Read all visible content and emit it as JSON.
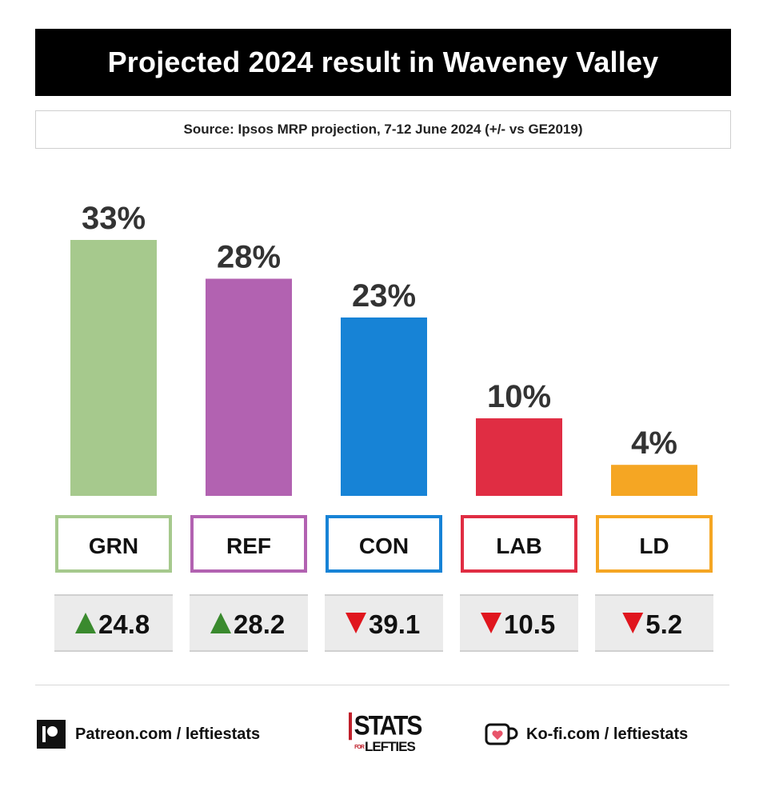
{
  "header": {
    "title": "Projected 2024 result in Waveney Valley",
    "source": "Source: Ipsos MRP projection, 7-12 June 2024 (+/- vs GE2019)"
  },
  "chart_data": {
    "type": "bar",
    "title": "Projected 2024 result in Waveney Valley",
    "categories": [
      "GRN",
      "REF",
      "CON",
      "LAB",
      "LD"
    ],
    "values": [
      33,
      28,
      23,
      10,
      4
    ],
    "value_labels": [
      "33%",
      "28%",
      "23%",
      "10%",
      "4%"
    ],
    "change_vs_ge2019": [
      24.8,
      28.2,
      -39.1,
      -10.5,
      -5.2
    ],
    "change_labels": [
      "24.8",
      "28.2",
      "39.1",
      "10.5",
      "5.2"
    ],
    "change_direction": [
      "up",
      "up",
      "down",
      "down",
      "down"
    ],
    "colors": [
      "#a6c98d",
      "#b262b1",
      "#1783d6",
      "#e02d43",
      "#f5a623"
    ],
    "ylim": [
      0,
      33
    ],
    "grid": false,
    "legend": "none"
  },
  "arrow_colors": {
    "up": "#3a8a2e",
    "down": "#e0161e"
  },
  "footer": {
    "patreon": "Patreon.com / leftiestats",
    "kofi": "Ko-fi.com / leftiestats",
    "patreon_icon": "patreon-icon",
    "kofi_icon": "kofi-cup-icon",
    "logo_line1": "STATS",
    "logo_line2_prefix": "FOR",
    "logo_line2": "LEFTIES"
  }
}
